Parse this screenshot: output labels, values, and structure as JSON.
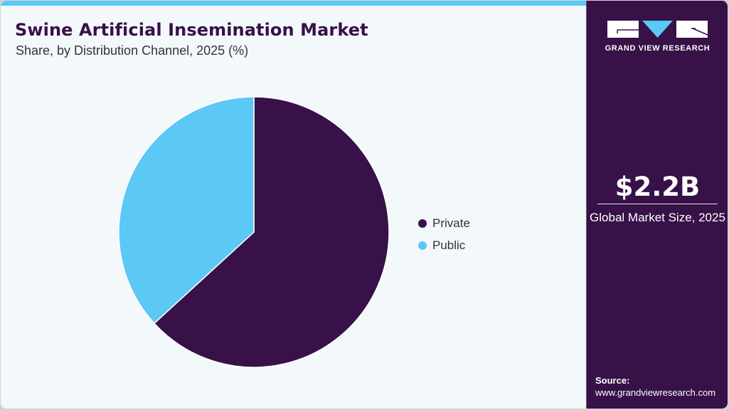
{
  "header": {
    "title": "Swine Artificial Insemination Market",
    "subtitle": "Share, by Distribution Channel, 2025 (%)"
  },
  "colors": {
    "accent_bar": "#5bc8f5",
    "brand_purple": "#371147",
    "light_blue": "#5bc8f5",
    "background": "#f3f8fb"
  },
  "legend": {
    "items": [
      {
        "label": "Private",
        "color": "#371147"
      },
      {
        "label": "Public",
        "color": "#5bc8f5"
      }
    ]
  },
  "sidebar": {
    "logo_text": "GRAND VIEW RESEARCH",
    "logo_icon": "gvr-logo-icon",
    "market_size": "$2.2B",
    "market_size_label": "Global Market Size, 2025",
    "source_label": "Source:",
    "source_url": "www.grandviewresearch.com"
  },
  "chart_data": {
    "type": "pie",
    "title": "Swine Artificial Insemination Market",
    "subtitle": "Share, by Distribution Channel, 2025 (%)",
    "categories": [
      "Private",
      "Public"
    ],
    "values": [
      63.2,
      36.8
    ],
    "colors": [
      "#371147",
      "#5bc8f5"
    ],
    "start_angle": "12 o'clock, clockwise",
    "legend_position": "right",
    "data_labels": false
  }
}
